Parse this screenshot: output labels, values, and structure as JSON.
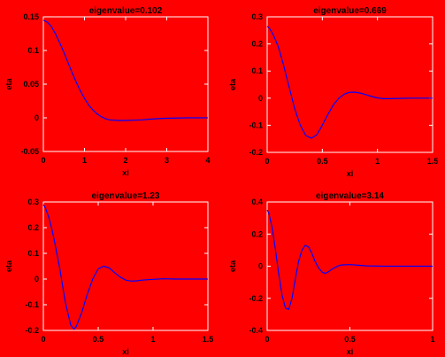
{
  "figure": {
    "background": "#ff0000",
    "axes_color": "#ffffff",
    "line_color": "#0000ff"
  },
  "chart_data": [
    {
      "type": "line",
      "title": "eigenvalue=0.102",
      "xlabel": "xi",
      "ylabel": "eta",
      "xlim": [
        0,
        4
      ],
      "ylim": [
        -0.05,
        0.15
      ],
      "xticks": [
        0,
        1,
        2,
        3,
        4
      ],
      "xtick_labels": [
        "0",
        "1",
        "2",
        "3",
        "4"
      ],
      "yticks": [
        -0.05,
        0,
        0.05,
        0.1,
        0.15
      ],
      "ytick_labels": [
        "-0.05",
        "0",
        "0.05",
        "0.1",
        "0.15"
      ],
      "series": [
        {
          "x": [
            0,
            0.1,
            0.2,
            0.3,
            0.4,
            0.5,
            0.6,
            0.7,
            0.8,
            0.9,
            1.0,
            1.1,
            1.2,
            1.3,
            1.4,
            1.5,
            1.6,
            1.8,
            2.0,
            2.2,
            2.4,
            2.6,
            2.8,
            3.0,
            3.5,
            4.0
          ],
          "y": [
            0.145,
            0.142,
            0.135,
            0.124,
            0.111,
            0.097,
            0.082,
            0.067,
            0.053,
            0.04,
            0.029,
            0.019,
            0.012,
            0.006,
            0.002,
            -0.001,
            -0.003,
            -0.004,
            -0.004,
            -0.0035,
            -0.003,
            -0.002,
            -0.0012,
            -0.0006,
            0,
            0
          ]
        }
      ]
    },
    {
      "type": "line",
      "title": "eigenvalue=0.669",
      "xlabel": "xi",
      "ylabel": "eta",
      "xlim": [
        0,
        1.5
      ],
      "ylim": [
        -0.2,
        0.3
      ],
      "xticks": [
        0,
        0.5,
        1,
        1.5
      ],
      "xtick_labels": [
        "0",
        "0.5",
        "1",
        "1.5"
      ],
      "yticks": [
        -0.2,
        -0.1,
        0,
        0.1,
        0.2,
        0.3
      ],
      "ytick_labels": [
        "-0.2",
        "-0.1",
        "0",
        "0.1",
        "0.2",
        "0.3"
      ],
      "series": [
        {
          "x": [
            0,
            0.02,
            0.05,
            0.08,
            0.1,
            0.15,
            0.2,
            0.25,
            0.3,
            0.35,
            0.4,
            0.45,
            0.5,
            0.55,
            0.6,
            0.65,
            0.7,
            0.75,
            0.8,
            0.85,
            0.9,
            0.95,
            1.0,
            1.05,
            1.1,
            1.2,
            1.3,
            1.5
          ],
          "y": [
            0.265,
            0.258,
            0.238,
            0.21,
            0.19,
            0.12,
            0.04,
            -0.04,
            -0.1,
            -0.138,
            -0.148,
            -0.135,
            -0.1,
            -0.06,
            -0.025,
            0,
            0.015,
            0.022,
            0.022,
            0.018,
            0.012,
            0.006,
            0.001,
            -0.002,
            -0.002,
            -0.001,
            0,
            0
          ]
        }
      ]
    },
    {
      "type": "line",
      "title": "eigenvalue=1.23",
      "xlabel": "xi",
      "ylabel": "eta",
      "xlim": [
        0,
        1.5
      ],
      "ylim": [
        -0.2,
        0.3
      ],
      "xticks": [
        0,
        0.5,
        1,
        1.5
      ],
      "xtick_labels": [
        "0",
        "0.5",
        "1",
        "1.5"
      ],
      "yticks": [
        -0.2,
        -0.1,
        0,
        0.1,
        0.2,
        0.3
      ],
      "ytick_labels": [
        "-0.2",
        "-0.1",
        "0",
        "0.1",
        "0.2",
        "0.3"
      ],
      "series": [
        {
          "x": [
            0,
            0.02,
            0.05,
            0.08,
            0.1,
            0.15,
            0.2,
            0.25,
            0.28,
            0.3,
            0.35,
            0.4,
            0.45,
            0.5,
            0.55,
            0.6,
            0.65,
            0.7,
            0.75,
            0.8,
            0.85,
            0.9,
            1.0,
            1.1,
            1.2,
            1.5
          ],
          "y": [
            0.29,
            0.275,
            0.24,
            0.19,
            0.15,
            0.04,
            -0.09,
            -0.18,
            -0.195,
            -0.185,
            -0.13,
            -0.06,
            0.0,
            0.04,
            0.05,
            0.043,
            0.025,
            0.008,
            -0.004,
            -0.008,
            -0.007,
            -0.004,
            -0.001,
            0.001,
            0.0,
            0.0
          ]
        }
      ]
    },
    {
      "type": "line",
      "title": "eigenvalue=3.14",
      "xlabel": "xi",
      "ylabel": "eta",
      "xlim": [
        0,
        1
      ],
      "ylim": [
        -0.4,
        0.4
      ],
      "xticks": [
        0,
        0.5,
        1
      ],
      "xtick_labels": [
        "0",
        "0.5",
        "1"
      ],
      "yticks": [
        -0.4,
        -0.2,
        0,
        0.2,
        0.4
      ],
      "ytick_labels": [
        "-0.4",
        "-0.2",
        "0",
        "0.2",
        "0.4"
      ],
      "series": [
        {
          "x": [
            0,
            0.01,
            0.03,
            0.05,
            0.07,
            0.09,
            0.11,
            0.13,
            0.15,
            0.17,
            0.19,
            0.21,
            0.23,
            0.25,
            0.27,
            0.29,
            0.31,
            0.33,
            0.35,
            0.37,
            0.39,
            0.41,
            0.43,
            0.45,
            0.5,
            0.55,
            0.6,
            0.7,
            0.8,
            0.9,
            1.0
          ],
          "y": [
            0.35,
            0.33,
            0.24,
            0.1,
            -0.05,
            -0.18,
            -0.26,
            -0.27,
            -0.2,
            -0.08,
            0.03,
            0.1,
            0.13,
            0.12,
            0.08,
            0.03,
            -0.01,
            -0.035,
            -0.045,
            -0.035,
            -0.02,
            -0.008,
            0.002,
            0.008,
            0.01,
            0.006,
            0.002,
            0.0,
            0.0,
            0.0,
            0.0
          ]
        }
      ]
    }
  ]
}
